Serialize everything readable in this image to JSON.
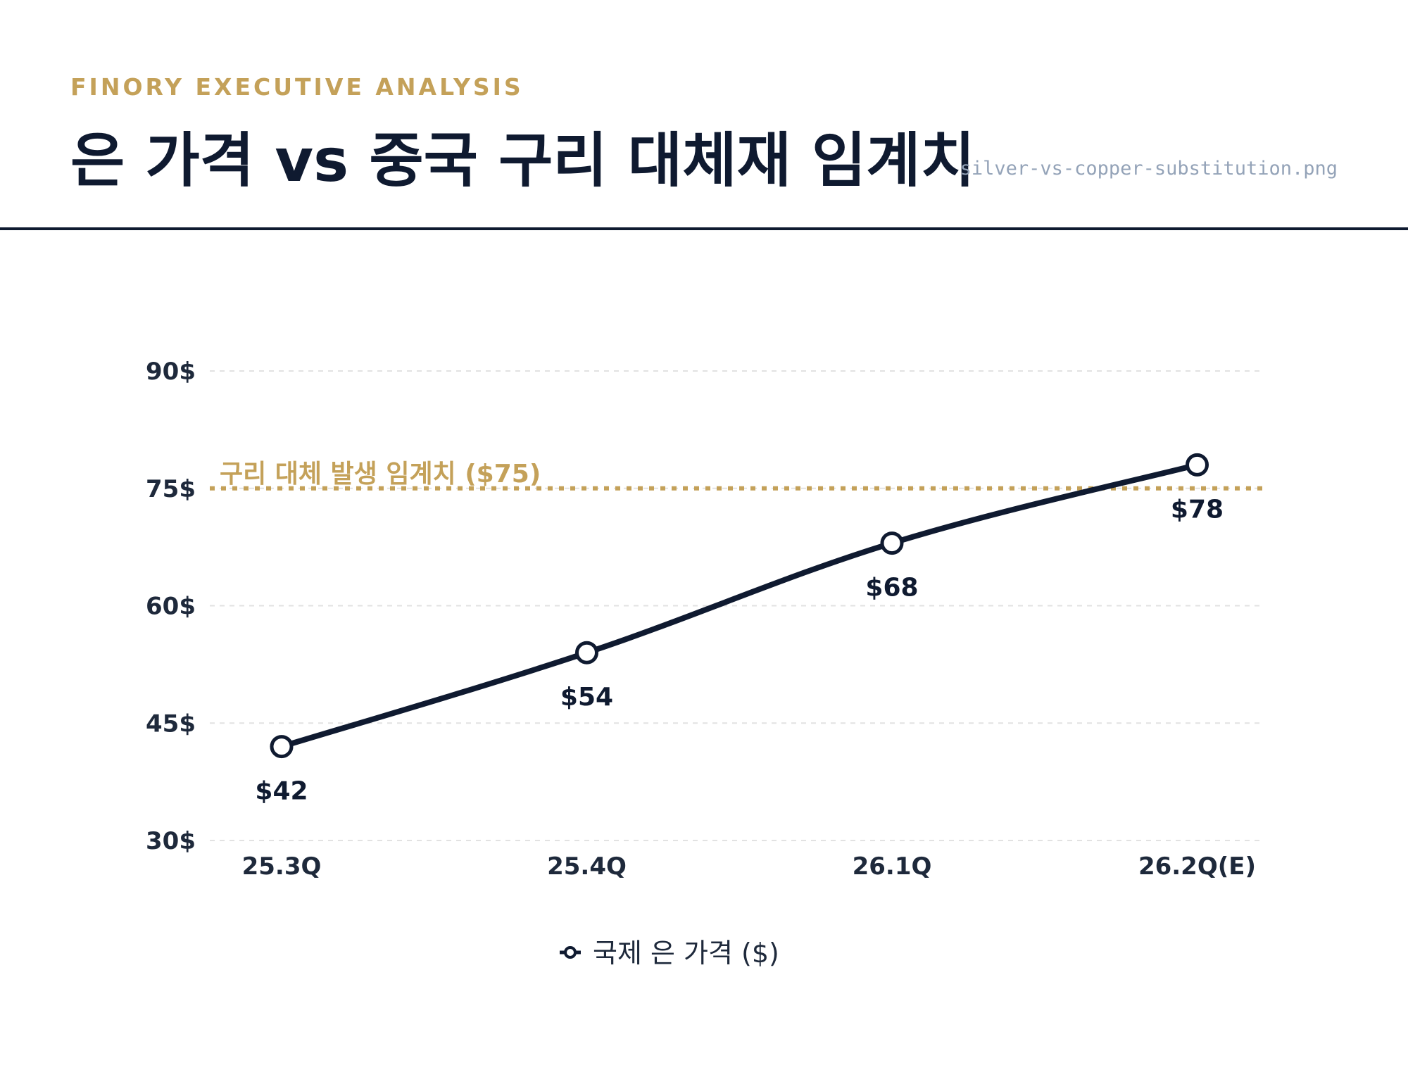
{
  "header": {
    "kicker": "FINORY EXECUTIVE ANALYSIS",
    "title": "은 가격 vs 중국 구리 대체재 임계치",
    "filename": "silver-vs-copper-substitution.png"
  },
  "colors": {
    "line": "#0f1a30",
    "threshold": "#c4a159",
    "grid": "#e2e2e2",
    "text": "#1e293b"
  },
  "chart_data": {
    "type": "line",
    "categories": [
      "25.3Q",
      "25.4Q",
      "26.1Q",
      "26.2Q(E)"
    ],
    "series": [
      {
        "name": "국제 은 가격 ($)",
        "values": [
          42,
          54,
          68,
          78
        ],
        "labels": [
          "$42",
          "$54",
          "$68",
          "$78"
        ],
        "marker": "hollow-circle"
      }
    ],
    "y_ticks": [
      30,
      45,
      60,
      75,
      90
    ],
    "y_tick_labels": [
      "30$",
      "45$",
      "60$",
      "75$",
      "90$"
    ],
    "ylim": [
      30,
      90
    ],
    "threshold": {
      "value": 75,
      "label": "구리 대체 발생 임계치 ($75)",
      "style": "dotted"
    },
    "grid": true,
    "legend_position": "bottom-center"
  }
}
